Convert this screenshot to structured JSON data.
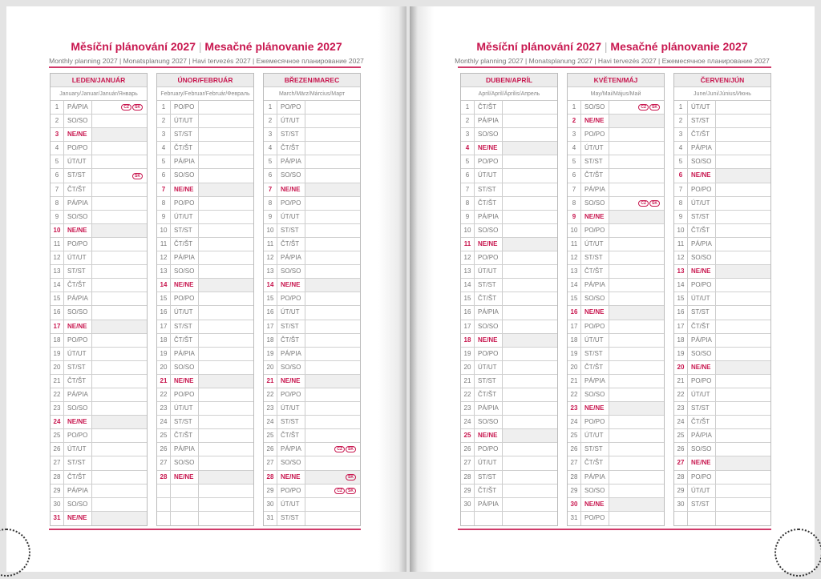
{
  "header": {
    "title_cz": "Měsíční plánování 2027",
    "title_sk": "Mesačné plánovanie 2027",
    "subtitle": "Monthly planning 2027 | Monatsplanung 2027 | Havi tervezés 2027 | Ежемесячное планирование 2027"
  },
  "weekdays": [
    "PO/PO",
    "ÚT/UT",
    "ST/ST",
    "ČT/ŠT",
    "PÁ/PIA",
    "SO/SO",
    "NE/NE"
  ],
  "badge_labels": {
    "cz": "CZ",
    "sk": "SK"
  },
  "colors": {
    "accent": "#c8174f",
    "sunday_bg": "#efefef"
  },
  "pages": [
    {
      "months": [
        {
          "name": "LEDEN/JANUÁR",
          "translations": "January/Januar/Január/Январь",
          "start": 4,
          "days": 31,
          "holidays": {
            "1": [
              "cz",
              "sk"
            ],
            "6": [
              "sk"
            ]
          }
        },
        {
          "name": "ÚNOR/FEBRUÁR",
          "translations": "February/Februar/Február/Февраль",
          "start": 0,
          "days": 28,
          "holidays": {}
        },
        {
          "name": "BŘEZEN/MAREC",
          "translations": "March/März/Március/Март",
          "start": 0,
          "days": 31,
          "holidays": {
            "26": [
              "cz",
              "sk"
            ],
            "28": [
              "sk"
            ],
            "29": [
              "cz",
              "sk"
            ]
          }
        }
      ]
    },
    {
      "months": [
        {
          "name": "DUBEN/APRÍL",
          "translations": "April/April/Április/Апрель",
          "start": 3,
          "days": 30,
          "holidays": {}
        },
        {
          "name": "KVĚTEN/MÁJ",
          "translations": "May/Mai/Május/Май",
          "start": 5,
          "days": 31,
          "holidays": {
            "1": [
              "cz",
              "sk"
            ],
            "8": [
              "cz",
              "sk"
            ]
          }
        },
        {
          "name": "ČERVEN/JÚN",
          "translations": "June/Juni/Június/Июнь",
          "start": 1,
          "days": 30,
          "holidays": {}
        }
      ]
    }
  ]
}
